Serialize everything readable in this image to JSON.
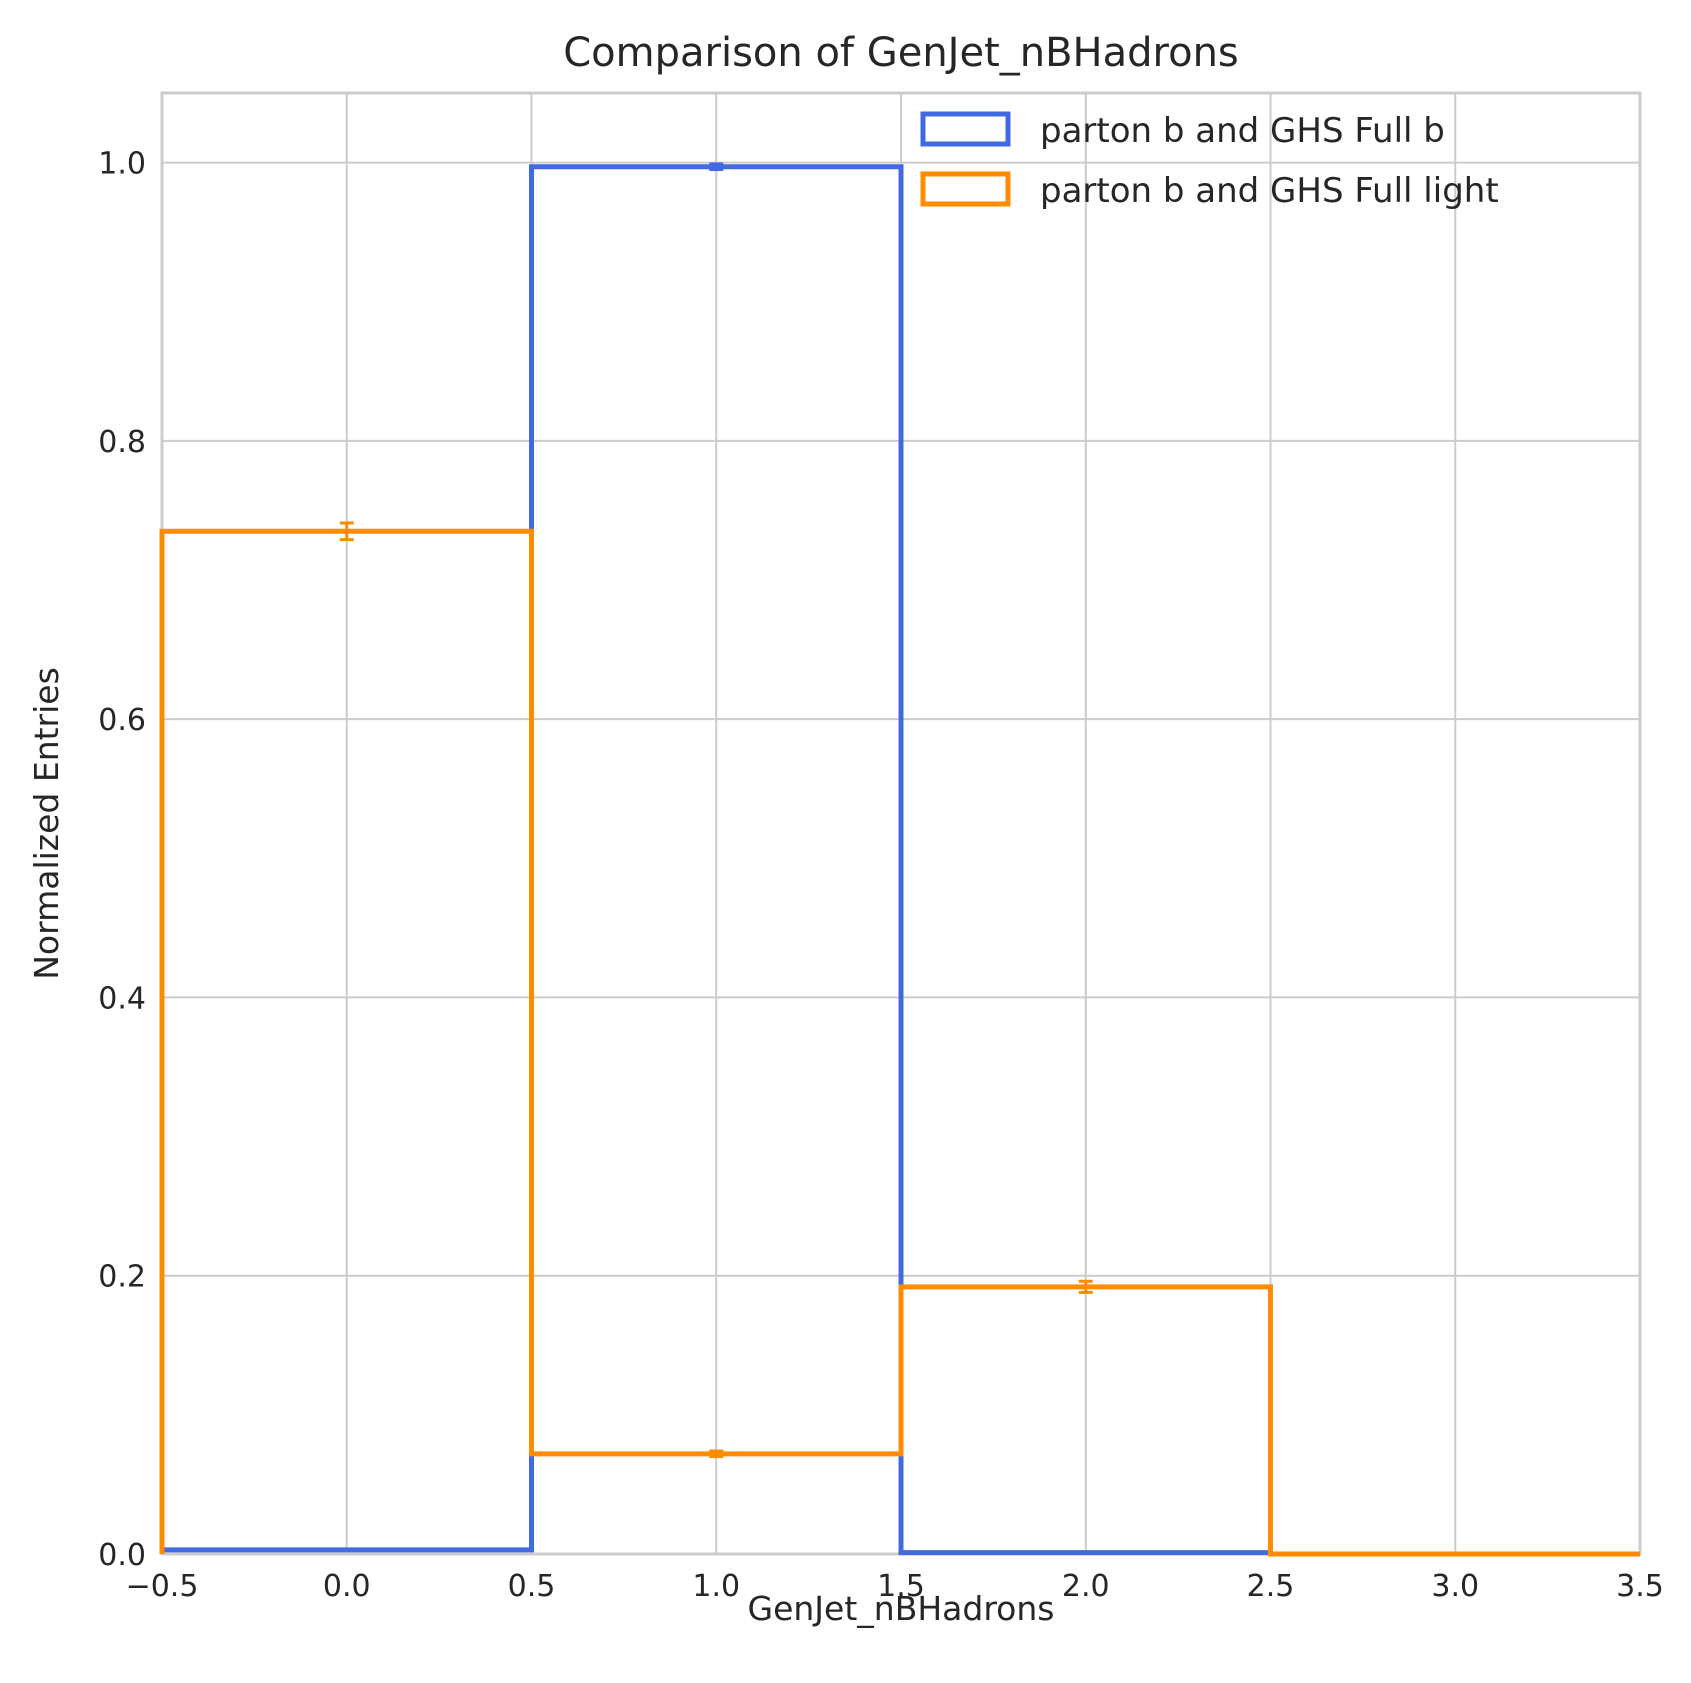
{
  "chart_data": {
    "type": "histogram-step",
    "title": "Comparison of GenJet_nBHadrons",
    "xlabel": "GenJet_nBHadrons",
    "ylabel": "Normalized Entries",
    "xlim": [
      -0.5,
      3.5
    ],
    "ylim": [
      0.0,
      1.05
    ],
    "xticks": [
      "−0.5",
      "0.0",
      "0.5",
      "1.0",
      "1.5",
      "2.0",
      "2.5",
      "3.0",
      "3.5"
    ],
    "xtick_values": [
      -0.5,
      0.0,
      0.5,
      1.0,
      1.5,
      2.0,
      2.5,
      3.0,
      3.5
    ],
    "yticks": [
      "0.0",
      "0.2",
      "0.4",
      "0.6",
      "0.8",
      "1.0"
    ],
    "ytick_values": [
      0.0,
      0.2,
      0.4,
      0.6,
      0.8,
      1.0
    ],
    "grid": true,
    "legend_position": "top-right",
    "bin_edges": [
      -0.5,
      0.5,
      1.5,
      2.5,
      3.5
    ],
    "series": [
      {
        "name": "parton b and GHS Full b",
        "color": "#4169e1",
        "values": [
          0.003,
          0.997,
          0.001,
          0.0
        ],
        "errors": [
          0.0,
          0.002,
          0.0,
          0.0
        ]
      },
      {
        "name": "parton b and GHS Full light",
        "color": "#ff8c00",
        "values": [
          0.735,
          0.072,
          0.192,
          0.0
        ],
        "errors": [
          0.006,
          0.002,
          0.004,
          0.0
        ]
      }
    ]
  }
}
